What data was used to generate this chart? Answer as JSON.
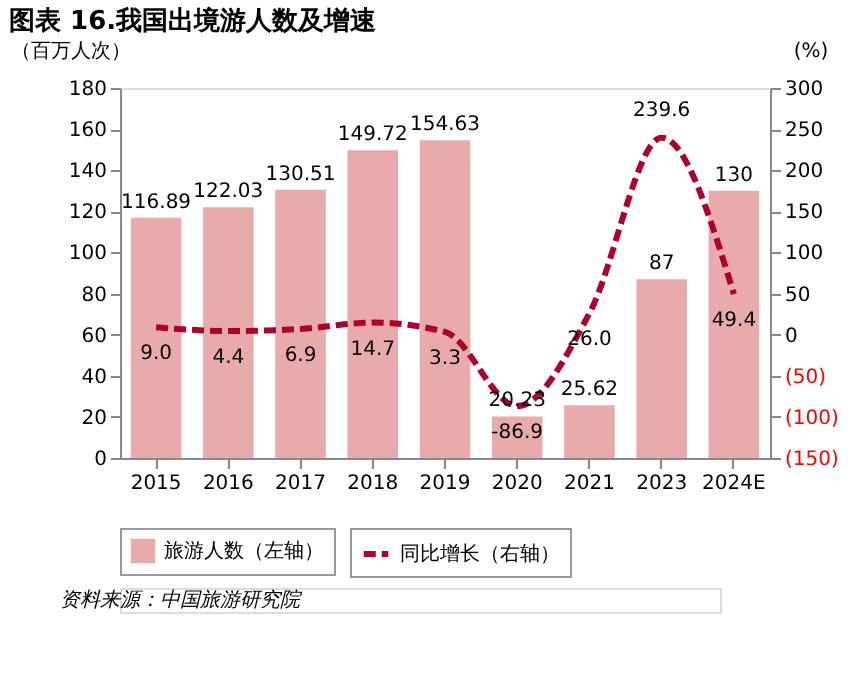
{
  "chart_data": {
    "type": "bar",
    "title": "图表 16.我国出境游人数及增速",
    "categories": [
      "2015",
      "2016",
      "2017",
      "2018",
      "2019",
      "2020",
      "2021",
      "2023",
      "2024E"
    ],
    "series": [
      {
        "name": "旅游人数（左轴）",
        "type": "bar",
        "color": "#e8aaaa",
        "values": [
          116.89,
          122.03,
          130.51,
          149.72,
          154.63,
          20.23,
          25.62,
          87,
          130
        ],
        "value_labels": [
          "116.89",
          "122.03",
          "130.51",
          "149.72",
          "154.63",
          "20.23",
          "25.62",
          "87",
          "130"
        ]
      },
      {
        "name": "同比增长（右轴）",
        "type": "line",
        "axis": "y2",
        "color": "#b0002a",
        "line_style": "dashed",
        "values": [
          9.0,
          4.4,
          6.9,
          14.7,
          3.3,
          -86.9,
          26.0,
          239.6,
          49.4
        ],
        "value_labels": [
          "9.0",
          "4.4",
          "6.9",
          "14.7",
          "3.3",
          "-86.9",
          "26.0",
          "239.6",
          "49.4"
        ]
      }
    ],
    "ylabel": "（百万人次）",
    "y2label": "(%)",
    "ylim": [
      0,
      180
    ],
    "yticks": [
      0,
      20,
      40,
      60,
      80,
      100,
      120,
      140,
      160,
      180
    ],
    "y2lim": [
      -150,
      300
    ],
    "y2ticks": [
      {
        "value": -150,
        "label": "(150)"
      },
      {
        "value": -100,
        "label": "(100)"
      },
      {
        "value": -50,
        "label": "(50)"
      },
      0,
      50,
      100,
      150,
      200,
      250,
      300
    ],
    "grid": false,
    "legend": "bottom",
    "marker": "none",
    "annotations": [
      "资料来源：中国旅游研究院"
    ]
  }
}
